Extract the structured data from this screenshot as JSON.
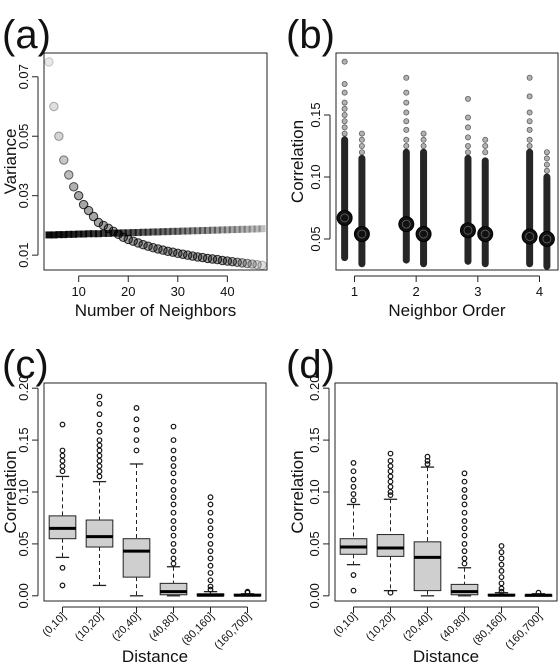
{
  "panels": [
    {
      "letter": "(a)"
    },
    {
      "letter": "(b)"
    },
    {
      "letter": "(c)"
    },
    {
      "letter": "(d)"
    }
  ],
  "chart_data": [
    {
      "type": "scatter",
      "panel": "(a)",
      "xlabel": "Number of Neighbors",
      "ylabel": "Variance",
      "xlim": [
        3,
        48
      ],
      "ylim": [
        0.005,
        0.078
      ],
      "xticks": [
        10,
        20,
        30,
        40
      ],
      "yticks": [
        0.01,
        0.03,
        0.05,
        0.07
      ],
      "ytick_labels": [
        "0.01",
        "0.03",
        "0.05",
        "0.07"
      ],
      "series": [
        {
          "marker": "circle",
          "x": [
            4,
            5,
            6,
            7,
            8,
            9,
            10,
            11,
            12,
            13,
            14,
            15,
            16,
            17,
            18,
            19,
            20,
            21,
            22,
            23,
            24,
            25,
            26,
            27,
            28,
            29,
            30,
            31,
            32,
            33,
            34,
            35,
            36,
            37,
            38,
            39,
            40,
            41,
            42,
            43,
            44,
            45,
            46,
            47
          ],
          "y": [
            0.075,
            0.06,
            0.05,
            0.042,
            0.037,
            0.033,
            0.03,
            0.027,
            0.025,
            0.023,
            0.021,
            0.02,
            0.019,
            0.018,
            0.017,
            0.016,
            0.0153,
            0.0147,
            0.0141,
            0.0135,
            0.013,
            0.0125,
            0.0121,
            0.0117,
            0.0113,
            0.011,
            0.0106,
            0.0103,
            0.01,
            0.0097,
            0.0094,
            0.0092,
            0.0089,
            0.0087,
            0.0085,
            0.0082,
            0.008,
            0.0078,
            0.0076,
            0.0074,
            0.0072,
            0.007,
            0.0068,
            0.0066
          ]
        },
        {
          "marker": "square",
          "x": [
            4,
            5,
            6,
            7,
            8,
            9,
            10,
            11,
            12,
            13,
            14,
            15,
            16,
            17,
            18,
            19,
            20,
            21,
            22,
            23,
            24,
            25,
            26,
            27,
            28,
            29,
            30,
            31,
            32,
            33,
            34,
            35,
            36,
            37,
            38,
            39,
            40,
            41,
            42,
            43,
            44,
            45,
            46,
            47
          ],
          "y": [
            0.0168,
            0.0168,
            0.0169,
            0.0169,
            0.017,
            0.017,
            0.0171,
            0.0171,
            0.0172,
            0.0172,
            0.0172,
            0.0173,
            0.0173,
            0.0174,
            0.0174,
            0.0175,
            0.0175,
            0.0176,
            0.0176,
            0.0177,
            0.0177,
            0.0178,
            0.0178,
            0.0179,
            0.0179,
            0.018,
            0.018,
            0.0181,
            0.0181,
            0.0182,
            0.0182,
            0.0183,
            0.0183,
            0.0184,
            0.0184,
            0.0185,
            0.0185,
            0.0186,
            0.0186,
            0.0187,
            0.0187,
            0.0188,
            0.0188,
            0.0189
          ]
        }
      ]
    },
    {
      "type": "scatter",
      "panel": "(b)",
      "xlabel": "Neighbor Order",
      "ylabel": "Correlation",
      "xlim": [
        0.7,
        4.3
      ],
      "ylim": [
        0.025,
        0.2
      ],
      "xticks": [
        1,
        2,
        3,
        4
      ],
      "yticks": [
        0.05,
        0.1,
        0.15
      ],
      "ytick_labels": [
        "0.05",
        "0.10",
        "0.15"
      ],
      "groups": [
        {
          "order": 1,
          "left": {
            "mean": 0.067,
            "lo": 0.035,
            "hi": 0.13,
            "outliers": [
              0.193,
              0.175,
              0.168,
              0.16,
              0.155,
              0.15,
              0.145,
              0.14,
              0.135
            ]
          },
          "right": {
            "mean": 0.054,
            "lo": 0.03,
            "hi": 0.115,
            "outliers": [
              0.135,
              0.13,
              0.125,
              0.12
            ]
          }
        },
        {
          "order": 2,
          "left": {
            "mean": 0.062,
            "lo": 0.033,
            "hi": 0.12,
            "outliers": [
              0.18,
              0.168,
              0.16,
              0.152,
              0.145,
              0.138,
              0.13,
              0.125
            ]
          },
          "right": {
            "mean": 0.054,
            "lo": 0.03,
            "hi": 0.12,
            "outliers": [
              0.135,
              0.13,
              0.125
            ]
          }
        },
        {
          "order": 3,
          "left": {
            "mean": 0.057,
            "lo": 0.032,
            "hi": 0.115,
            "outliers": [
              0.163,
              0.148,
              0.14,
              0.132,
              0.125,
              0.12
            ]
          },
          "right": {
            "mean": 0.054,
            "lo": 0.03,
            "hi": 0.113,
            "outliers": [
              0.13,
              0.125,
              0.12
            ]
          }
        },
        {
          "order": 4,
          "left": {
            "mean": 0.052,
            "lo": 0.03,
            "hi": 0.12,
            "outliers": [
              0.18,
              0.165,
              0.152,
              0.145,
              0.138,
              0.13,
              0.125
            ]
          },
          "right": {
            "mean": 0.05,
            "lo": 0.028,
            "hi": 0.1,
            "outliers": [
              0.12,
              0.115,
              0.11,
              0.105
            ]
          }
        }
      ]
    },
    {
      "type": "box",
      "panel": "(c)",
      "xlabel": "Distance",
      "ylabel": "Correlation",
      "ylim": [
        -0.005,
        0.205
      ],
      "yticks": [
        0,
        0.05,
        0.1,
        0.15,
        0.2
      ],
      "ytick_labels": [
        "0.00",
        "0.05",
        "0.10",
        "0.15",
        "0.20"
      ],
      "categories": [
        "(0,10]",
        "(10,20]",
        "(20,40]",
        "(40,80]",
        "(80,160]",
        "(160,700]"
      ],
      "boxes": [
        {
          "q1": 0.055,
          "median": 0.065,
          "q3": 0.077,
          "wlo": 0.037,
          "whi": 0.115,
          "outliers": [
            0.165,
            0.14,
            0.135,
            0.13,
            0.125,
            0.12,
            0.027,
            0.01
          ]
        },
        {
          "q1": 0.047,
          "median": 0.057,
          "q3": 0.073,
          "wlo": 0.01,
          "whi": 0.11,
          "outliers": [
            0.192,
            0.185,
            0.175,
            0.165,
            0.158,
            0.15,
            0.145,
            0.14,
            0.135,
            0.13,
            0.125,
            0.12,
            0.115
          ]
        },
        {
          "q1": 0.018,
          "median": 0.043,
          "q3": 0.055,
          "wlo": 0,
          "whi": 0.127,
          "outliers": [
            0.181,
            0.17,
            0.16,
            0.15,
            0.14
          ]
        },
        {
          "q1": 0.001,
          "median": 0.004,
          "q3": 0.012,
          "wlo": 0,
          "whi": 0.028,
          "outliers": [
            0.163,
            0.15,
            0.14,
            0.132,
            0.125,
            0.118,
            0.11,
            0.102,
            0.095,
            0.088,
            0.08,
            0.072,
            0.065,
            0.058,
            0.05,
            0.043,
            0.036,
            0.031
          ]
        },
        {
          "q1": 0,
          "median": 0.0005,
          "q3": 0.002,
          "wlo": 0,
          "whi": 0.004,
          "outliers": [
            0.095,
            0.088,
            0.08,
            0.072,
            0.065,
            0.058,
            0.05,
            0.043,
            0.036,
            0.029,
            0.022,
            0.015,
            0.009,
            0.006
          ]
        },
        {
          "q1": 0,
          "median": 0.0005,
          "q3": 0.0015,
          "wlo": 0,
          "whi": 0.002,
          "outliers": [
            0.004,
            0.003
          ]
        }
      ]
    },
    {
      "type": "box",
      "panel": "(d)",
      "xlabel": "Distance",
      "ylabel": "Correlation",
      "ylim": [
        -0.005,
        0.205
      ],
      "yticks": [
        0,
        0.05,
        0.1,
        0.15,
        0.2
      ],
      "ytick_labels": [
        "0.00",
        "0.05",
        "0.10",
        "0.15",
        "0.20"
      ],
      "categories": [
        "(0,10]",
        "(10,20]",
        "(20,40]",
        "(40,80]",
        "(80,160]",
        "(160,700]"
      ],
      "boxes": [
        {
          "q1": 0.04,
          "median": 0.047,
          "q3": 0.055,
          "wlo": 0.03,
          "whi": 0.088,
          "outliers": [
            0.128,
            0.12,
            0.112,
            0.105,
            0.098,
            0.092,
            0.02,
            0.005
          ]
        },
        {
          "q1": 0.038,
          "median": 0.046,
          "q3": 0.059,
          "wlo": 0.005,
          "whi": 0.093,
          "outliers": [
            0.137,
            0.13,
            0.125,
            0.12,
            0.115,
            0.11,
            0.105,
            0.1,
            0.097,
            0.003
          ]
        },
        {
          "q1": 0.005,
          "median": 0.037,
          "q3": 0.052,
          "wlo": 0,
          "whi": 0.124,
          "outliers": [
            0.134,
            0.13,
            0.127
          ]
        },
        {
          "q1": 0.001,
          "median": 0.004,
          "q3": 0.011,
          "wlo": 0,
          "whi": 0.027,
          "outliers": [
            0.118,
            0.11,
            0.102,
            0.095,
            0.088,
            0.08,
            0.072,
            0.065,
            0.058,
            0.05,
            0.043,
            0.036,
            0.031
          ]
        },
        {
          "q1": 0,
          "median": 0.0005,
          "q3": 0.0015,
          "wlo": 0,
          "whi": 0.003,
          "outliers": [
            0.048,
            0.042,
            0.036,
            0.03,
            0.024,
            0.018,
            0.012,
            0.007,
            0.004
          ]
        },
        {
          "q1": 0,
          "median": 0.0005,
          "q3": 0.001,
          "wlo": 0,
          "whi": 0.002,
          "outliers": [
            0.003
          ]
        }
      ]
    }
  ]
}
